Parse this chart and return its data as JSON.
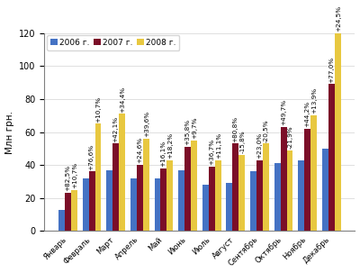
{
  "months": [
    "Январь",
    "Февраль",
    "Март",
    "Апрель",
    "Май",
    "Июнь",
    "Июль",
    "Август",
    "Сентябрь",
    "Октябрь",
    "Ноябрь",
    "Декабрь"
  ],
  "values_2006": [
    13,
    32,
    37,
    32,
    32,
    37,
    28,
    29,
    36,
    41,
    43,
    50
  ],
  "values_2007": [
    23,
    36,
    53,
    40,
    38,
    51,
    39,
    53,
    43,
    63,
    62,
    89
  ],
  "values_2008": [
    25,
    65,
    71,
    56,
    43,
    55,
    43,
    46,
    53,
    49,
    70,
    120
  ],
  "color_2006": "#4472C4",
  "color_2007": "#7B0E28",
  "color_2008": "#E8C840",
  "ylabel": "Млн грн.",
  "ylim": [
    0,
    120
  ],
  "yticks": [
    0,
    20,
    40,
    60,
    80,
    100,
    120
  ],
  "legend_labels": [
    "2006 г.",
    "2007 г.",
    "2008 г."
  ],
  "annotations_2007": [
    "+82,5%",
    "+76,6%",
    "+42,1%",
    "+24,6%",
    "+16,1%",
    "+35,8%",
    "+36,7%",
    "+80,8%",
    "+23,0%",
    "+49,7%",
    "+44,2%",
    "+77,0%"
  ],
  "annotations_2008": [
    "+10,7%",
    "+10,7%",
    "+34,4%",
    "+39,6%",
    "+18,2%",
    "+9,7%",
    "+11,1%",
    "-15,8%",
    "-20,5%",
    "-21,9%",
    "+13,9%",
    "+24,5%"
  ],
  "annotation_fontsize": 5.2,
  "bar_width": 0.26
}
